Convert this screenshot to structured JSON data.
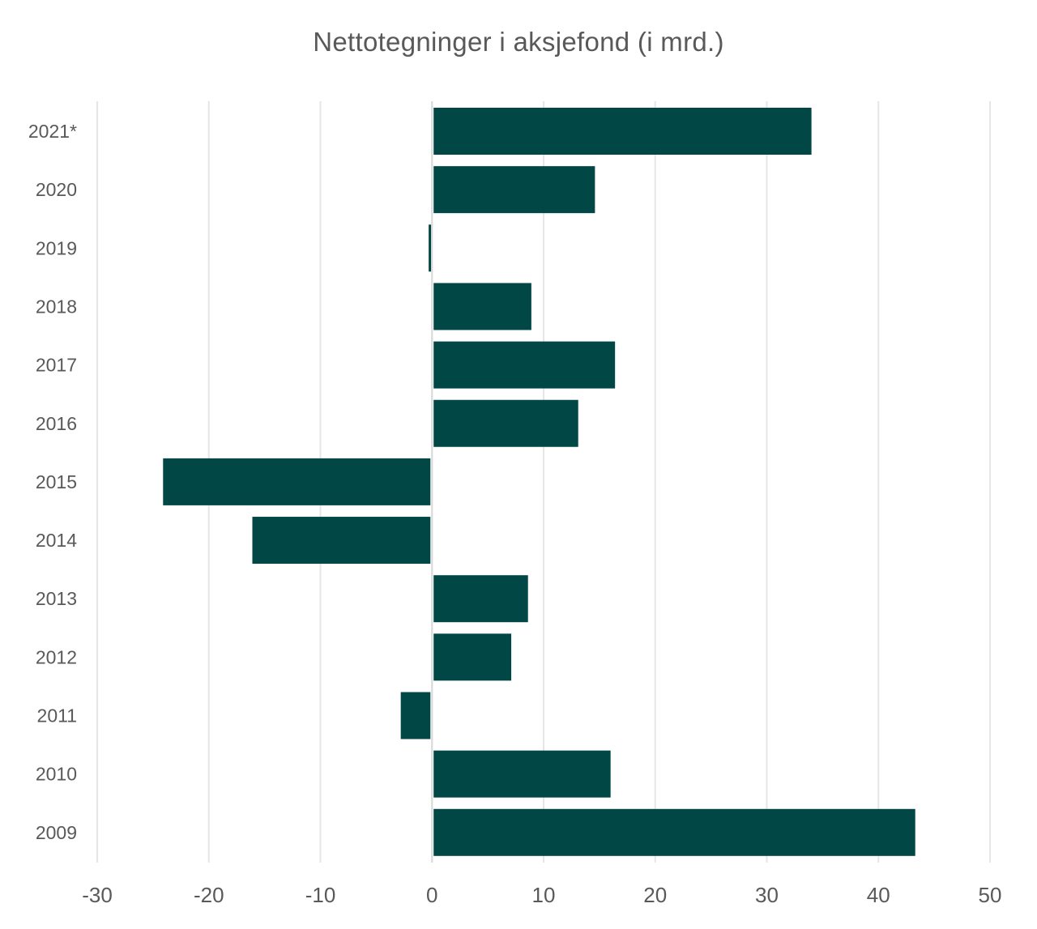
{
  "chart_data": {
    "type": "bar",
    "orientation": "horizontal",
    "title": "Nettotegninger i aksjefond (i mrd.)",
    "xlabel": "",
    "ylabel": "",
    "categories": [
      "2021*",
      "2020",
      "2019",
      "2018",
      "2017",
      "2016",
      "2015",
      "2014",
      "2013",
      "2012",
      "2011",
      "2010",
      "2009"
    ],
    "values": [
      34.0,
      14.6,
      -0.3,
      8.9,
      16.4,
      13.1,
      -24.1,
      -16.1,
      8.6,
      7.1,
      -2.8,
      16.0,
      43.3
    ],
    "xlim": [
      -30,
      50
    ],
    "xticks": [
      "-30",
      "-20",
      "-10",
      "0",
      "10",
      "20",
      "30",
      "40",
      "50"
    ],
    "grid": "vertical",
    "legend": "none",
    "colors": {
      "bar": "#004745",
      "grid": "#e6e6e6",
      "tick_text": "#595959",
      "title_text": "#595959"
    }
  }
}
